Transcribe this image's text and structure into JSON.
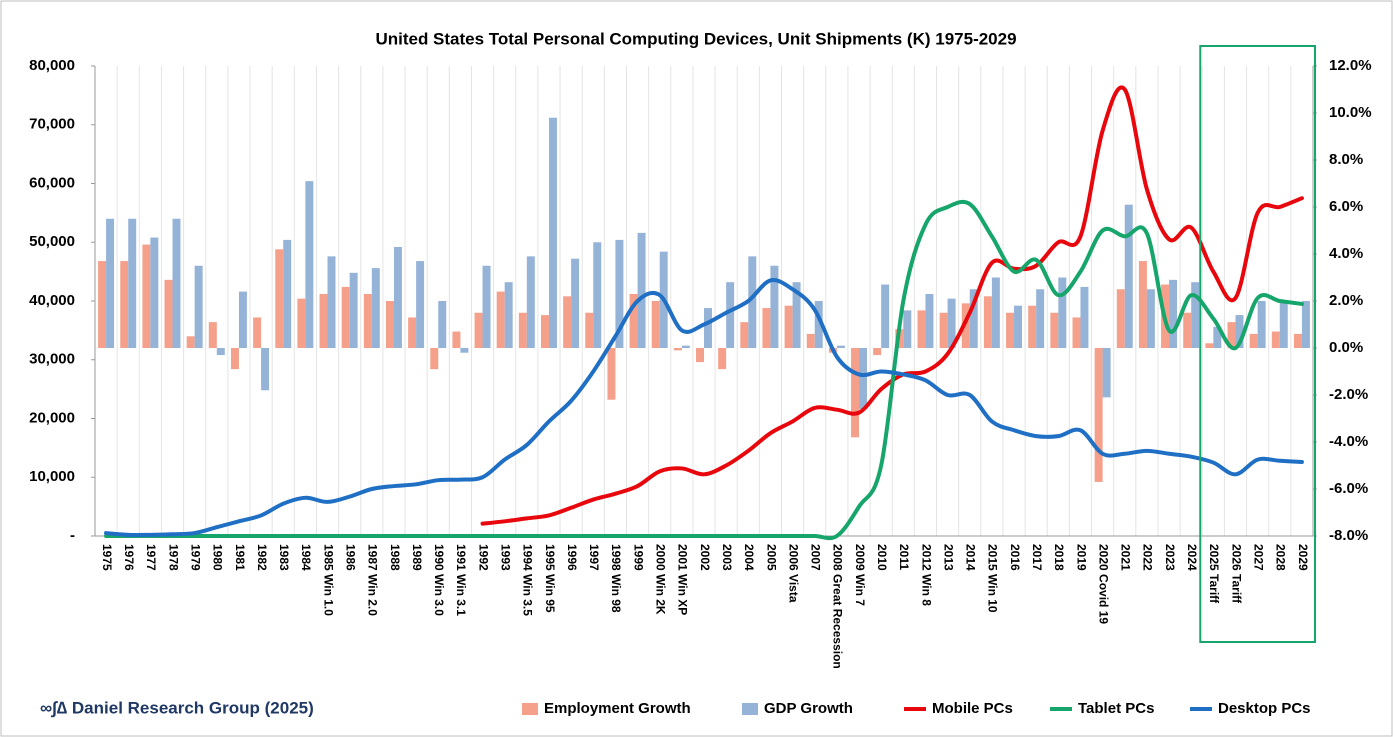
{
  "chart_data": {
    "type": "combo",
    "title": "United States Total Personal Computing Devices, Unit Shipments (K) 1975-2029",
    "source": "∞∫∆ Daniel Research Group (2025)",
    "categories": [
      "1975",
      "1976",
      "1977",
      "1978",
      "1979",
      "1980",
      "1981",
      "1982",
      "1983",
      "1984",
      "1985 Win 1.0",
      "1986",
      "1987 Win 2.0",
      "1988",
      "1989",
      "1990 Win 3.0",
      "1991 Win 3.1",
      "1992",
      "1993",
      "1994 Win 3.5",
      "1995 Win 95",
      "1996",
      "1997",
      "1998 Win 98",
      "1999",
      "2000 Win 2K",
      "2001 Win XP",
      "2002",
      "2003",
      "2004",
      "2005",
      "2006 Vista",
      "2007",
      "2008 Great Recession",
      "2009 Win 7",
      "2010",
      "2011",
      "2012 Win 8",
      "2013",
      "2014",
      "2015 Win 10",
      "2016",
      "2017",
      "2018",
      "2019",
      "2020 Covid 19",
      "2021",
      "2022",
      "2023",
      "2024",
      "2025 Tariff",
      "2026 Tariff",
      "2027",
      "2028",
      "2029"
    ],
    "ylim": [
      0,
      80000
    ],
    "yticks": [
      {
        "value": 0,
        "label": "-"
      },
      {
        "value": 10000,
        "label": "10,000"
      },
      {
        "value": 20000,
        "label": "20,000"
      },
      {
        "value": 30000,
        "label": "30,000"
      },
      {
        "value": 40000,
        "label": "40,000"
      },
      {
        "value": 50000,
        "label": "50,000"
      },
      {
        "value": 60000,
        "label": "60,000"
      },
      {
        "value": 70000,
        "label": "70,000"
      },
      {
        "value": 80000,
        "label": "80,000"
      }
    ],
    "y2lim": [
      -8,
      12
    ],
    "y2ticks": [
      {
        "value": -8,
        "label": "-8.0%"
      },
      {
        "value": -6,
        "label": "-6.0%"
      },
      {
        "value": -4,
        "label": "-4.0%"
      },
      {
        "value": -2,
        "label": "-2.0%"
      },
      {
        "value": 0,
        "label": "0.0%"
      },
      {
        "value": 2,
        "label": "2.0%"
      },
      {
        "value": 4,
        "label": "4.0%"
      },
      {
        "value": 6,
        "label": "6.0%"
      },
      {
        "value": 8,
        "label": "8.0%"
      },
      {
        "value": 10,
        "label": "10.0%"
      },
      {
        "value": 12,
        "label": "12.0%"
      }
    ],
    "series": [
      {
        "name": "Employment Growth",
        "type": "bar",
        "axis": "y2",
        "color": "#f4a08a",
        "values": [
          3.7,
          3.7,
          4.4,
          2.9,
          0.5,
          1.1,
          -0.9,
          1.3,
          4.2,
          2.1,
          2.3,
          2.6,
          2.3,
          2.0,
          1.3,
          -0.9,
          0.7,
          1.5,
          2.4,
          1.5,
          1.4,
          2.2,
          1.5,
          -2.2,
          2.3,
          2.0,
          -0.1,
          -0.6,
          -0.9,
          1.1,
          1.7,
          1.8,
          0.6,
          -0.2,
          -3.8,
          -0.3,
          0.8,
          1.6,
          1.5,
          1.9,
          2.2,
          1.5,
          1.8,
          1.5,
          1.3,
          -5.7,
          2.5,
          3.7,
          2.7,
          1.5,
          0.2,
          1.1,
          0.6,
          0.7,
          0.6
        ]
      },
      {
        "name": "GDP Growth",
        "type": "bar",
        "axis": "y2",
        "color": "#95b3d7",
        "values": [
          5.5,
          5.5,
          4.7,
          5.5,
          3.5,
          -0.3,
          2.4,
          -1.8,
          4.6,
          7.1,
          3.9,
          3.2,
          3.4,
          4.3,
          3.7,
          2.0,
          -0.2,
          3.5,
          2.8,
          3.9,
          9.8,
          3.8,
          4.5,
          4.6,
          4.9,
          4.1,
          0.1,
          1.7,
          2.8,
          3.9,
          3.5,
          2.8,
          2.0,
          0.1,
          -2.6,
          2.7,
          1.6,
          2.3,
          2.1,
          2.5,
          3.0,
          1.8,
          2.5,
          3.0,
          2.6,
          -2.1,
          6.1,
          2.5,
          2.9,
          2.8,
          0.9,
          1.4,
          2.0,
          2.0,
          2.0
        ]
      },
      {
        "name": "Mobile PCs",
        "type": "line",
        "axis": "y",
        "color": "#e8070c",
        "values": [
          null,
          null,
          null,
          null,
          null,
          null,
          null,
          null,
          null,
          null,
          null,
          null,
          null,
          null,
          null,
          null,
          null,
          2100,
          2500,
          3000,
          3500,
          4800,
          6200,
          7200,
          8500,
          11000,
          11500,
          10500,
          12000,
          14500,
          17500,
          19500,
          21800,
          21500,
          21000,
          25000,
          27500,
          28000,
          31000,
          38000,
          46500,
          45500,
          46000,
          50000,
          51000,
          69000,
          76000,
          59000,
          50500,
          52500,
          45000,
          40500,
          55000,
          56000,
          57500
        ]
      },
      {
        "name": "Tablet PCs",
        "type": "line",
        "axis": "y",
        "color": "#16a56b",
        "values": [
          0,
          0,
          0,
          0,
          0,
          0,
          0,
          0,
          0,
          0,
          0,
          0,
          0,
          0,
          0,
          0,
          0,
          0,
          0,
          0,
          0,
          0,
          0,
          0,
          0,
          0,
          0,
          0,
          0,
          0,
          0,
          0,
          0,
          0,
          5000,
          12000,
          40000,
          53000,
          56000,
          56500,
          51000,
          45000,
          47000,
          41000,
          45000,
          52000,
          51000,
          51500,
          35000,
          41000,
          37000,
          32000,
          40500,
          40000,
          39500
        ]
      },
      {
        "name": "Desktop PCs",
        "type": "line",
        "axis": "y",
        "color": "#1f6fc5",
        "values": [
          500,
          200,
          200,
          300,
          500,
          1500,
          2500,
          3500,
          5500,
          6500,
          5800,
          6700,
          8000,
          8500,
          8800,
          9500,
          9600,
          10000,
          13000,
          15500,
          19500,
          23000,
          28000,
          34000,
          40000,
          41000,
          35000,
          36000,
          38000,
          40000,
          43500,
          42000,
          38500,
          30500,
          27500,
          28000,
          27500,
          26500,
          24000,
          24000,
          19500,
          18000,
          17000,
          17000,
          18000,
          14000,
          14000,
          14500,
          14000,
          13500,
          12500,
          10500,
          13000,
          12800,
          12600
        ]
      }
    ]
  }
}
